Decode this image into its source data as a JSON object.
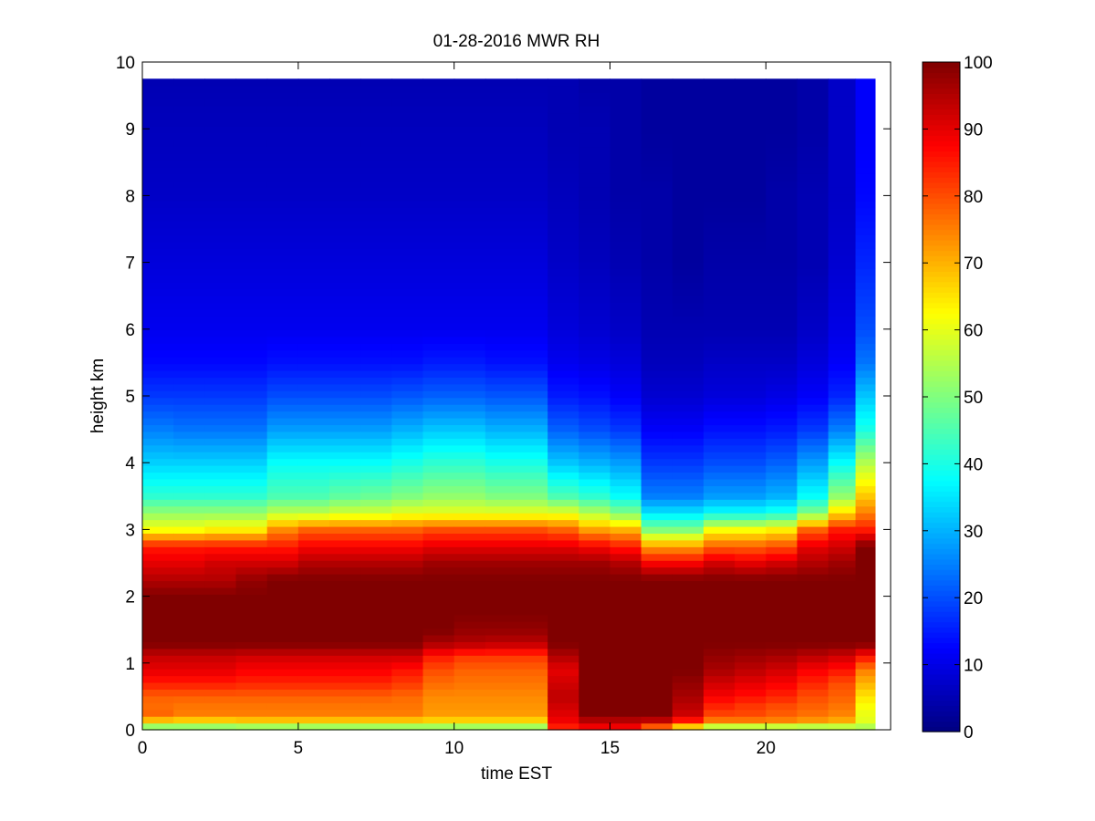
{
  "chart_data": {
    "type": "heatmap",
    "title": "01-28-2016 MWR RH",
    "xlabel": "time EST",
    "ylabel": "height km",
    "xlim": [
      0,
      24
    ],
    "ylim": [
      0,
      10
    ],
    "x_ticks": [
      "0",
      "5",
      "10",
      "15",
      "20"
    ],
    "y_ticks": [
      "0",
      "1",
      "2",
      "3",
      "4",
      "5",
      "6",
      "7",
      "8",
      "9",
      "10"
    ],
    "colorbar": {
      "label_ticks": [
        "0",
        "10",
        "20",
        "30",
        "40",
        "50",
        "60",
        "70",
        "80",
        "90",
        "100"
      ],
      "range": [
        0,
        100
      ],
      "colormap": "jet"
    },
    "data_extent": {
      "x": [
        0,
        23.5
      ],
      "y": [
        0,
        9.75
      ]
    },
    "time_columns": [
      0.5,
      1.5,
      2.5,
      3.5,
      4.5,
      5.5,
      6.5,
      7.5,
      8.5,
      9.5,
      10.5,
      11.5,
      12.5,
      13.5,
      14.5,
      15.5,
      16.5,
      17.5,
      18.5,
      19.5,
      20.5,
      21.5,
      22.5,
      23.25
    ],
    "height_levels": [
      0,
      0.1,
      0.2,
      0.35,
      0.5,
      0.7,
      0.9,
      1.1,
      1.3,
      1.5,
      1.75,
      2,
      2.25,
      2.5,
      2.75,
      3,
      3.25,
      3.5,
      4,
      4.5,
      5,
      5.5,
      6,
      7,
      8,
      9,
      9.75
    ],
    "rh_profiles": [
      {
        "t": 0.5,
        "rh": [
          45,
          60,
          78,
          77,
          78,
          85,
          90,
          93,
          100,
          100,
          100,
          100,
          95,
          90,
          85,
          62,
          52,
          42,
          33,
          25,
          18,
          13,
          11,
          9,
          7,
          6,
          5
        ]
      },
      {
        "t": 1.5,
        "rh": [
          45,
          60,
          75,
          76,
          78,
          85,
          90,
          93,
          100,
          100,
          100,
          100,
          95,
          90,
          85,
          62,
          52,
          42,
          33,
          24,
          18,
          13,
          11,
          9,
          7,
          6,
          5
        ]
      },
      {
        "t": 2.5,
        "rh": [
          45,
          60,
          75,
          76,
          78,
          85,
          90,
          93,
          100,
          100,
          100,
          100,
          95,
          92,
          85,
          64,
          52,
          42,
          33,
          24,
          18,
          13,
          11,
          9,
          7,
          6,
          5
        ]
      },
      {
        "t": 3.5,
        "rh": [
          45,
          62,
          75,
          76,
          78,
          84,
          88,
          92,
          100,
          100,
          100,
          100,
          98,
          92,
          85,
          64,
          52,
          42,
          33,
          24,
          18,
          13,
          11,
          9,
          7,
          6,
          5
        ]
      },
      {
        "t": 4.5,
        "rh": [
          45,
          62,
          75,
          76,
          78,
          84,
          88,
          92,
          100,
          100,
          100,
          100,
          100,
          92,
          85,
          74,
          56,
          45,
          38,
          28,
          20,
          14,
          11,
          9,
          7,
          6,
          5
        ]
      },
      {
        "t": 5.5,
        "rh": [
          45,
          62,
          75,
          76,
          78,
          84,
          88,
          92,
          100,
          100,
          100,
          100,
          100,
          95,
          88,
          78,
          56,
          45,
          38,
          28,
          20,
          14,
          11,
          9,
          7,
          6,
          5
        ]
      },
      {
        "t": 6.5,
        "rh": [
          45,
          62,
          75,
          76,
          78,
          84,
          88,
          92,
          100,
          100,
          100,
          100,
          100,
          95,
          88,
          78,
          58,
          47,
          38,
          28,
          20,
          14,
          11,
          9,
          7,
          6,
          5
        ]
      },
      {
        "t": 7.5,
        "rh": [
          45,
          62,
          75,
          76,
          78,
          84,
          88,
          92,
          100,
          100,
          100,
          100,
          100,
          95,
          88,
          78,
          58,
          48,
          38,
          28,
          20,
          14,
          11,
          9,
          7,
          6,
          5
        ]
      },
      {
        "t": 8.5,
        "rh": [
          45,
          62,
          75,
          76,
          77,
          82,
          86,
          92,
          100,
          100,
          100,
          100,
          100,
          95,
          88,
          78,
          60,
          50,
          40,
          30,
          21,
          14,
          11,
          9,
          7,
          6,
          5
        ]
      },
      {
        "t": 9.5,
        "rh": [
          45,
          62,
          72,
          73,
          74,
          77,
          80,
          85,
          96,
          100,
          100,
          100,
          100,
          97,
          90,
          80,
          60,
          52,
          42,
          32,
          22,
          15,
          11,
          9,
          7,
          6,
          5
        ]
      },
      {
        "t": 10.5,
        "rh": [
          45,
          62,
          72,
          73,
          74,
          76,
          78,
          82,
          95,
          98,
          100,
          100,
          100,
          97,
          90,
          80,
          60,
          52,
          42,
          32,
          22,
          15,
          11,
          9,
          7,
          6,
          5
        ]
      },
      {
        "t": 11.5,
        "rh": [
          45,
          62,
          72,
          73,
          74,
          76,
          78,
          82,
          94,
          98,
          100,
          100,
          100,
          97,
          90,
          80,
          60,
          50,
          40,
          30,
          21,
          14,
          11,
          9,
          7,
          6,
          5
        ]
      },
      {
        "t": 12.5,
        "rh": [
          45,
          62,
          72,
          73,
          74,
          76,
          78,
          82,
          94,
          98,
          100,
          100,
          100,
          97,
          90,
          80,
          60,
          50,
          40,
          30,
          21,
          14,
          11,
          9,
          7,
          6,
          5
        ]
      },
      {
        "t": 13.5,
        "rh": [
          82,
          88,
          90,
          92,
          94,
          92,
          90,
          95,
          100,
          100,
          100,
          100,
          100,
          97,
          90,
          78,
          60,
          45,
          32,
          22,
          15,
          11,
          9,
          7,
          6,
          5,
          5
        ]
      },
      {
        "t": 14.5,
        "rh": [
          88,
          90,
          100,
          100,
          100,
          100,
          100,
          100,
          100,
          100,
          100,
          100,
          100,
          97,
          88,
          72,
          55,
          42,
          30,
          20,
          14,
          10,
          8,
          6,
          5,
          5,
          4
        ]
      },
      {
        "t": 15.5,
        "rh": [
          88,
          90,
          100,
          100,
          100,
          100,
          100,
          100,
          100,
          100,
          100,
          100,
          100,
          95,
          85,
          70,
          50,
          38,
          28,
          18,
          12,
          9,
          7,
          5,
          4,
          4,
          4
        ]
      },
      {
        "t": 16.5,
        "rh": [
          70,
          88,
          100,
          100,
          100,
          100,
          100,
          100,
          100,
          100,
          100,
          100,
          100,
          88,
          72,
          50,
          35,
          25,
          18,
          12,
          8,
          6,
          5,
          4,
          4,
          3,
          3
        ]
      },
      {
        "t": 17.5,
        "rh": [
          55,
          80,
          92,
          94,
          96,
          98,
          100,
          100,
          100,
          100,
          100,
          100,
          100,
          88,
          72,
          50,
          35,
          25,
          18,
          12,
          8,
          6,
          5,
          3,
          3,
          3,
          3
        ]
      },
      {
        "t": 18.5,
        "rh": [
          42,
          72,
          80,
          84,
          88,
          92,
          96,
          98,
          100,
          100,
          100,
          100,
          100,
          92,
          78,
          62,
          38,
          28,
          20,
          14,
          9,
          7,
          5,
          4,
          3,
          3,
          3
        ]
      },
      {
        "t": 19.5,
        "rh": [
          42,
          72,
          80,
          82,
          86,
          90,
          94,
          97,
          100,
          100,
          100,
          100,
          100,
          90,
          78,
          62,
          38,
          28,
          20,
          14,
          9,
          7,
          5,
          4,
          3,
          3,
          3
        ]
      },
      {
        "t": 20.5,
        "rh": [
          42,
          72,
          78,
          80,
          84,
          88,
          92,
          96,
          100,
          100,
          100,
          100,
          100,
          92,
          80,
          64,
          40,
          30,
          22,
          15,
          10,
          7,
          5,
          4,
          4,
          3,
          3
        ]
      },
      {
        "t": 21.5,
        "rh": [
          42,
          70,
          76,
          78,
          80,
          84,
          88,
          94,
          100,
          100,
          100,
          100,
          100,
          95,
          90,
          78,
          50,
          38,
          28,
          18,
          12,
          9,
          7,
          5,
          5,
          4,
          4
        ]
      },
      {
        "t": 22.5,
        "rh": [
          45,
          68,
          74,
          76,
          78,
          80,
          86,
          92,
          100,
          100,
          100,
          100,
          100,
          97,
          92,
          85,
          66,
          52,
          38,
          25,
          16,
          12,
          10,
          8,
          7,
          7,
          7
        ]
      },
      {
        "t": 23.25,
        "rh": [
          50,
          60,
          60,
          62,
          65,
          70,
          75,
          86,
          100,
          100,
          100,
          100,
          100,
          100,
          100,
          85,
          75,
          68,
          55,
          40,
          32,
          24,
          20,
          16,
          13,
          12,
          12
        ]
      }
    ]
  }
}
